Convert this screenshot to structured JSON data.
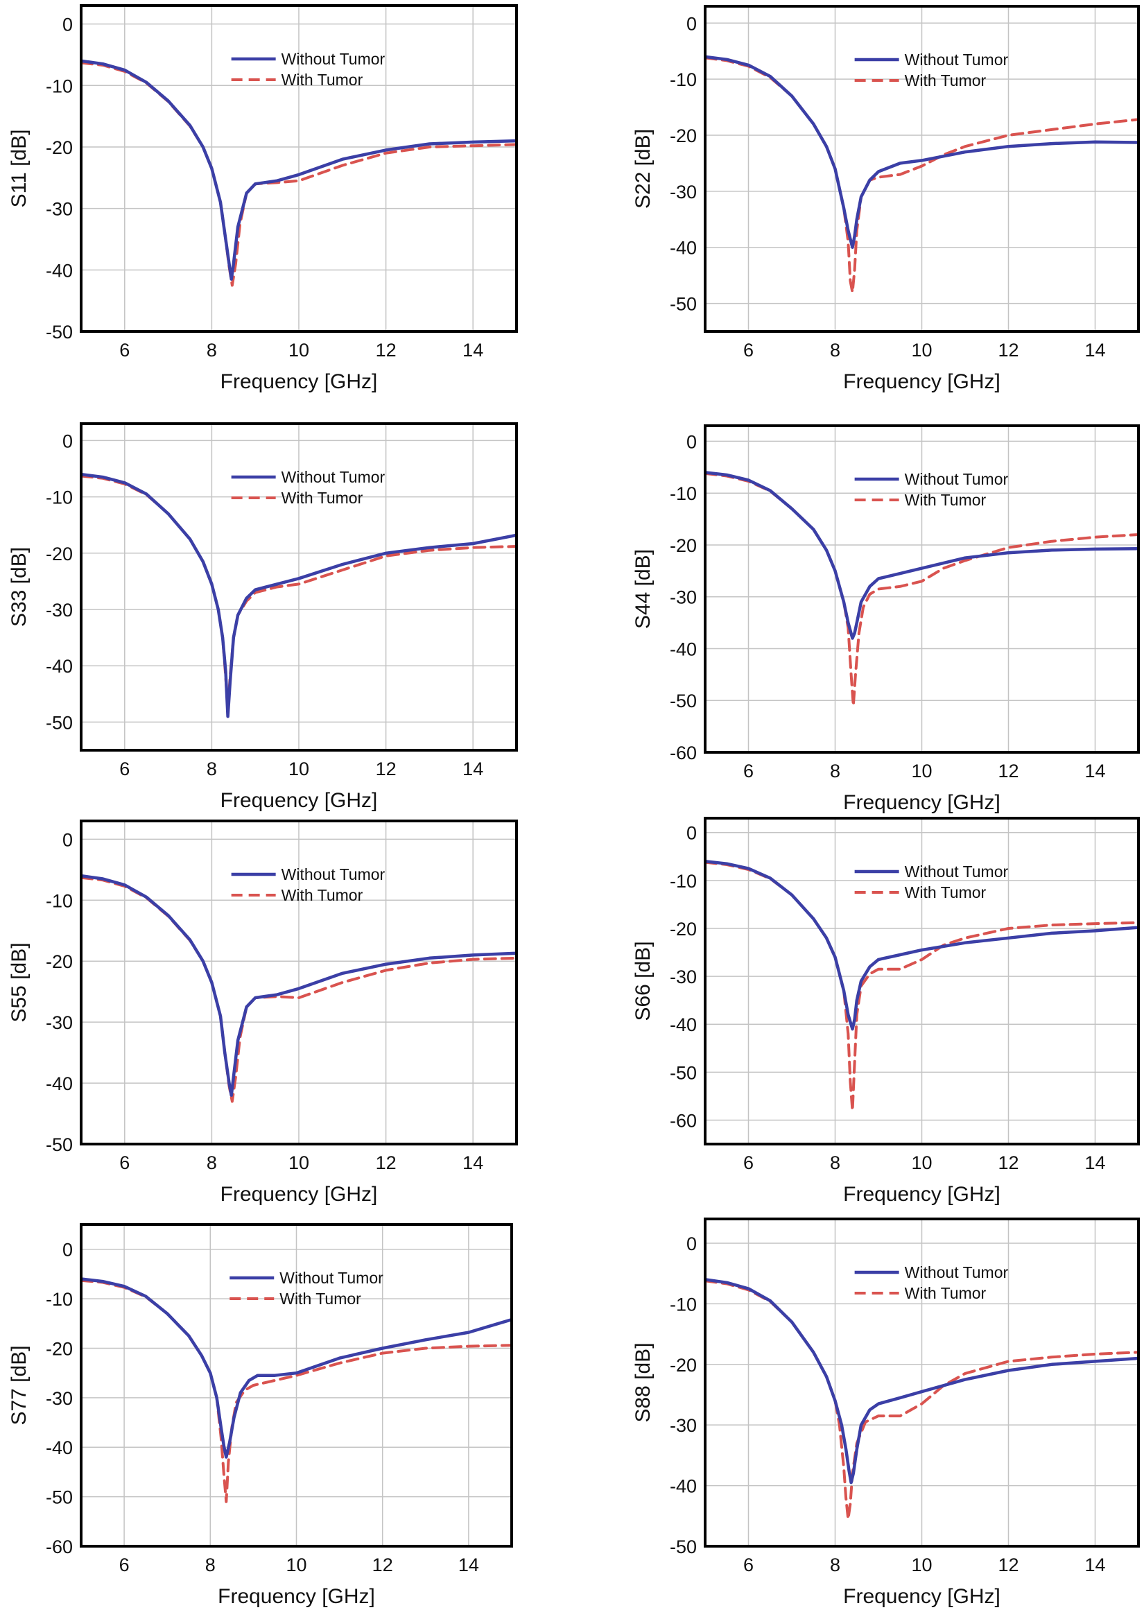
{
  "colors": {
    "without_tumor": "#3b3fa6",
    "with_tumor": "#d9534f",
    "grid": "#c4c4c4",
    "frame": "#000000"
  },
  "legend_items": [
    "Without Tumor",
    "With Tumor"
  ],
  "chart_data": [
    {
      "type": "line",
      "xlabel": "Frequency [GHz]",
      "ylabel": "S11 [dB]",
      "xlim": [
        5,
        15
      ],
      "ylim": [
        -50,
        3
      ],
      "xticks": [
        "6",
        "8",
        "10",
        "12",
        "14"
      ],
      "yticks": [
        "0",
        "-10",
        "-20",
        "-30",
        "-40",
        "-50"
      ],
      "legend": "top-right",
      "grid": true,
      "series": [
        {
          "name": "Without Tumor",
          "style": "solid",
          "x": [
            5,
            5.5,
            6,
            6.5,
            7,
            7.5,
            7.8,
            8.0,
            8.2,
            8.3,
            8.4,
            8.45,
            8.5,
            8.6,
            8.8,
            9.0,
            9.5,
            10,
            11,
            12,
            13,
            14,
            15
          ],
          "y": [
            -6,
            -6.5,
            -7.5,
            -9.5,
            -12.5,
            -16.5,
            -20,
            -23.5,
            -29,
            -34,
            -39,
            -41.5,
            -39,
            -33,
            -27.5,
            -26,
            -25.5,
            -24.5,
            -22,
            -20.5,
            -19.5,
            -19.2,
            -19
          ]
        },
        {
          "name": "With Tumor",
          "style": "dashed",
          "x": [
            5,
            5.5,
            6,
            6.5,
            7,
            7.5,
            7.8,
            8.0,
            8.2,
            8.3,
            8.4,
            8.47,
            8.55,
            8.65,
            8.8,
            9.0,
            9.5,
            10,
            11,
            12,
            13,
            14,
            15
          ],
          "y": [
            -6.3,
            -6.7,
            -7.7,
            -9.6,
            -12.6,
            -16.6,
            -20,
            -23.5,
            -29,
            -34,
            -39.5,
            -42.5,
            -39,
            -32.5,
            -27.5,
            -26,
            -25.8,
            -25.5,
            -23,
            -21,
            -20,
            -19.8,
            -19.6
          ]
        }
      ]
    },
    {
      "type": "line",
      "xlabel": "Frequency [GHz]",
      "ylabel": "S22 [dB]",
      "xlim": [
        5,
        15
      ],
      "ylim": [
        -55,
        3
      ],
      "xticks": [
        "6",
        "8",
        "10",
        "12",
        "14"
      ],
      "yticks": [
        "0",
        "-10",
        "-20",
        "-30",
        "-40",
        "-50"
      ],
      "legend": "top-right",
      "grid": true,
      "series": [
        {
          "name": "Without Tumor",
          "style": "solid",
          "x": [
            5,
            5.5,
            6,
            6.5,
            7,
            7.5,
            7.8,
            8.0,
            8.2,
            8.3,
            8.4,
            8.45,
            8.5,
            8.6,
            8.8,
            9.0,
            9.5,
            10,
            11,
            12,
            13,
            14,
            15
          ],
          "y": [
            -6,
            -6.5,
            -7.5,
            -9.5,
            -13,
            -18,
            -22,
            -26,
            -33,
            -37,
            -40,
            -38,
            -35,
            -31,
            -28,
            -26.5,
            -25,
            -24.5,
            -23,
            -22,
            -21.5,
            -21.2,
            -21.3
          ]
        },
        {
          "name": "With Tumor",
          "style": "dashed",
          "x": [
            5,
            5.5,
            6,
            6.5,
            7,
            7.5,
            7.8,
            8.0,
            8.2,
            8.3,
            8.35,
            8.4,
            8.45,
            8.5,
            8.6,
            8.8,
            9.0,
            9.5,
            10,
            10.5,
            11,
            12,
            13,
            14,
            15
          ],
          "y": [
            -6.2,
            -6.7,
            -7.7,
            -9.7,
            -13,
            -18,
            -22,
            -26,
            -33,
            -39,
            -46,
            -48,
            -44,
            -37,
            -31,
            -28,
            -27.5,
            -27,
            -25.5,
            -23.5,
            -22,
            -20,
            -19,
            -18,
            -17.2
          ]
        }
      ]
    },
    {
      "type": "line",
      "xlabel": "Frequency [GHz]",
      "ylabel": "S33 [dB]",
      "xlim": [
        5,
        15
      ],
      "ylim": [
        -55,
        3
      ],
      "xticks": [
        "6",
        "8",
        "10",
        "12",
        "14"
      ],
      "yticks": [
        "0",
        "-10",
        "-20",
        "-30",
        "-40",
        "-50"
      ],
      "legend": "top-right",
      "grid": true,
      "series": [
        {
          "name": "Without Tumor",
          "style": "solid",
          "x": [
            5,
            5.5,
            6,
            6.5,
            7,
            7.5,
            7.8,
            8.0,
            8.15,
            8.25,
            8.32,
            8.37,
            8.42,
            8.5,
            8.6,
            8.8,
            9.0,
            9.5,
            10,
            11,
            12,
            13,
            14,
            15
          ],
          "y": [
            -6,
            -6.5,
            -7.5,
            -9.5,
            -13,
            -17.5,
            -21.5,
            -25.5,
            -30,
            -35,
            -41,
            -49,
            -43,
            -35,
            -31,
            -28,
            -26.5,
            -25.5,
            -24.5,
            -22,
            -20,
            -19,
            -18.3,
            -16.8
          ]
        },
        {
          "name": "With Tumor",
          "style": "dashed",
          "x": [
            5,
            5.5,
            6,
            6.5,
            7,
            7.5,
            7.8,
            8.0,
            8.15,
            8.25,
            8.32,
            8.37,
            8.42,
            8.5,
            8.6,
            8.8,
            9.0,
            9.5,
            10,
            11,
            12,
            13,
            14,
            15
          ],
          "y": [
            -6.3,
            -6.7,
            -7.7,
            -9.6,
            -13,
            -17.5,
            -21.5,
            -25.5,
            -30,
            -35,
            -42,
            -48,
            -42,
            -35,
            -31,
            -28.5,
            -27,
            -26,
            -25.5,
            -23,
            -20.5,
            -19.5,
            -19,
            -18.8
          ]
        }
      ]
    },
    {
      "type": "line",
      "xlabel": "Frequency [GHz]",
      "ylabel": "S44 [dB]",
      "xlim": [
        5,
        15
      ],
      "ylim": [
        -60,
        3
      ],
      "xticks": [
        "6",
        "8",
        "10",
        "12",
        "14"
      ],
      "yticks": [
        "0",
        "-10",
        "-20",
        "-30",
        "-40",
        "-50",
        "-60"
      ],
      "legend": "top-right",
      "grid": true,
      "series": [
        {
          "name": "Without Tumor",
          "style": "solid",
          "x": [
            5,
            5.5,
            6,
            6.5,
            7,
            7.5,
            7.8,
            8.0,
            8.2,
            8.3,
            8.4,
            8.45,
            8.5,
            8.6,
            8.8,
            9.0,
            9.5,
            10,
            11,
            12,
            13,
            14,
            15
          ],
          "y": [
            -6,
            -6.5,
            -7.5,
            -9.5,
            -13,
            -17,
            -21,
            -25,
            -31,
            -35,
            -38,
            -37,
            -35,
            -31,
            -28,
            -26.5,
            -25.5,
            -24.5,
            -22.5,
            -21.5,
            -21,
            -20.8,
            -20.7
          ]
        },
        {
          "name": "With Tumor",
          "style": "dashed",
          "x": [
            5,
            5.5,
            6,
            6.5,
            7,
            7.5,
            7.8,
            8.0,
            8.2,
            8.3,
            8.37,
            8.42,
            8.47,
            8.55,
            8.65,
            8.8,
            9.0,
            9.5,
            10,
            10.5,
            11,
            12,
            13,
            14,
            15
          ],
          "y": [
            -6.2,
            -6.7,
            -7.7,
            -9.6,
            -13,
            -17,
            -21,
            -25,
            -31,
            -36,
            -45,
            -51,
            -45,
            -37,
            -32,
            -29.5,
            -28.5,
            -28,
            -27,
            -24.5,
            -23,
            -20.5,
            -19.3,
            -18.5,
            -18
          ]
        }
      ]
    },
    {
      "type": "line",
      "xlabel": "Frequency [GHz]",
      "ylabel": "S55 [dB]",
      "xlim": [
        5,
        15
      ],
      "ylim": [
        -50,
        3
      ],
      "xticks": [
        "6",
        "8",
        "10",
        "12",
        "14"
      ],
      "yticks": [
        "0",
        "-10",
        "-20",
        "-30",
        "-40",
        "-50"
      ],
      "legend": "top-right",
      "grid": true,
      "series": [
        {
          "name": "Without Tumor",
          "style": "solid",
          "x": [
            5,
            5.5,
            6,
            6.5,
            7,
            7.5,
            7.8,
            8.0,
            8.2,
            8.3,
            8.4,
            8.45,
            8.5,
            8.6,
            8.8,
            9.0,
            9.5,
            10,
            11,
            12,
            13,
            14,
            15
          ],
          "y": [
            -6,
            -6.5,
            -7.5,
            -9.5,
            -12.5,
            -16.5,
            -20,
            -23.5,
            -29,
            -35,
            -40,
            -42,
            -39,
            -33,
            -27.5,
            -26,
            -25.5,
            -24.5,
            -22,
            -20.5,
            -19.5,
            -19,
            -18.7
          ]
        },
        {
          "name": "With Tumor",
          "style": "dashed",
          "x": [
            5,
            5.5,
            6,
            6.5,
            7,
            7.5,
            7.8,
            8.0,
            8.2,
            8.3,
            8.4,
            8.47,
            8.55,
            8.65,
            8.8,
            9.0,
            9.5,
            10,
            11,
            12,
            13,
            14,
            15
          ],
          "y": [
            -6.3,
            -6.7,
            -7.7,
            -9.6,
            -12.6,
            -16.6,
            -20,
            -23.5,
            -29,
            -35,
            -40.5,
            -43,
            -39,
            -32.5,
            -27.5,
            -26,
            -25.8,
            -26,
            -23.5,
            -21.5,
            -20.3,
            -19.7,
            -19.5
          ]
        }
      ]
    },
    {
      "type": "line",
      "xlabel": "Frequency [GHz]",
      "ylabel": "S66 [dB]",
      "xlim": [
        5,
        15
      ],
      "ylim": [
        -65,
        3
      ],
      "xticks": [
        "6",
        "8",
        "10",
        "12",
        "14"
      ],
      "yticks": [
        "0",
        "-10",
        "-20",
        "-30",
        "-40",
        "-50",
        "-60"
      ],
      "legend": "top-right",
      "grid": true,
      "series": [
        {
          "name": "Without Tumor",
          "style": "solid",
          "x": [
            5,
            5.5,
            6,
            6.5,
            7,
            7.5,
            7.8,
            8.0,
            8.2,
            8.3,
            8.4,
            8.45,
            8.5,
            8.6,
            8.8,
            9.0,
            9.5,
            10,
            11,
            12,
            13,
            14,
            15
          ],
          "y": [
            -6,
            -6.5,
            -7.5,
            -9.5,
            -13,
            -18,
            -22,
            -26,
            -33,
            -38,
            -41,
            -39,
            -35,
            -31,
            -28,
            -26.5,
            -25.5,
            -24.5,
            -23,
            -22,
            -21,
            -20.5,
            -19.8
          ]
        },
        {
          "name": "With Tumor",
          "style": "dashed",
          "x": [
            5,
            5.5,
            6,
            6.5,
            7,
            7.5,
            7.8,
            8.0,
            8.2,
            8.3,
            8.35,
            8.4,
            8.45,
            8.5,
            8.6,
            8.8,
            9.0,
            9.5,
            10,
            10.5,
            11,
            12,
            13,
            14,
            15
          ],
          "y": [
            -6.2,
            -6.7,
            -7.7,
            -9.6,
            -13,
            -18,
            -22,
            -26,
            -33,
            -42,
            -52,
            -58,
            -48,
            -38,
            -32,
            -29.5,
            -28.5,
            -28.5,
            -26.5,
            -23.5,
            -22,
            -20,
            -19.3,
            -19,
            -18.8
          ]
        }
      ]
    },
    {
      "type": "line",
      "xlabel": "Frequency [GHz]",
      "ylabel": "S77 [dB]",
      "xlim": [
        5,
        15
      ],
      "ylim": [
        -60,
        5
      ],
      "xticks": [
        "6",
        "8",
        "10",
        "12",
        "14"
      ],
      "yticks": [
        "0",
        "-10",
        "-20",
        "-30",
        "-40",
        "-50",
        "-60"
      ],
      "legend": "top-right",
      "grid": true,
      "series": [
        {
          "name": "Without Tumor",
          "style": "solid",
          "x": [
            5,
            5.5,
            6,
            6.5,
            7,
            7.5,
            7.8,
            8.0,
            8.15,
            8.25,
            8.32,
            8.37,
            8.45,
            8.55,
            8.7,
            8.9,
            9.1,
            9.5,
            10,
            11,
            12,
            13,
            14,
            15
          ],
          "y": [
            -6,
            -6.5,
            -7.5,
            -9.5,
            -13,
            -17.5,
            -21.5,
            -25,
            -30,
            -36,
            -40,
            -42,
            -39,
            -34,
            -29,
            -26.5,
            -25.5,
            -25.5,
            -25,
            -22,
            -20,
            -18.3,
            -16.8,
            -14.2
          ]
        },
        {
          "name": "With Tumor",
          "style": "dashed",
          "x": [
            5,
            5.5,
            6,
            6.5,
            7,
            7.5,
            7.8,
            8.0,
            8.15,
            8.25,
            8.32,
            8.37,
            8.42,
            8.5,
            8.6,
            8.8,
            9.0,
            9.5,
            10,
            11,
            12,
            13,
            14,
            15
          ],
          "y": [
            -6.3,
            -6.7,
            -7.7,
            -9.6,
            -13,
            -17.5,
            -21.5,
            -25,
            -30,
            -38,
            -46,
            -51,
            -43,
            -36,
            -31,
            -28.5,
            -27.5,
            -26.5,
            -25.5,
            -23,
            -21,
            -20,
            -19.6,
            -19.4
          ]
        }
      ]
    },
    {
      "type": "line",
      "xlabel": "Frequency [GHz]",
      "ylabel": "S88 [dB]",
      "xlim": [
        5,
        15
      ],
      "ylim": [
        -50,
        4
      ],
      "xticks": [
        "6",
        "8",
        "10",
        "12",
        "14"
      ],
      "yticks": [
        "0",
        "-10",
        "-20",
        "-30",
        "-40",
        "-50"
      ],
      "legend": "top-right",
      "grid": true,
      "series": [
        {
          "name": "Without Tumor",
          "style": "solid",
          "x": [
            5,
            5.5,
            6,
            6.5,
            7,
            7.5,
            7.8,
            8.0,
            8.15,
            8.25,
            8.32,
            8.37,
            8.42,
            8.5,
            8.6,
            8.8,
            9.0,
            9.5,
            10,
            11,
            12,
            13,
            14,
            15
          ],
          "y": [
            -6,
            -6.5,
            -7.5,
            -9.5,
            -13,
            -18,
            -22,
            -26,
            -30,
            -34,
            -37.5,
            -39.5,
            -38,
            -34,
            -30,
            -27.5,
            -26.5,
            -25.5,
            -24.5,
            -22.5,
            -21,
            -20,
            -19.5,
            -19
          ]
        },
        {
          "name": "With Tumor",
          "style": "dashed",
          "x": [
            5,
            5.5,
            6,
            6.5,
            7,
            7.5,
            7.8,
            8.0,
            8.1,
            8.2,
            8.25,
            8.3,
            8.35,
            8.4,
            8.5,
            8.7,
            9.0,
            9.5,
            10,
            10.5,
            11,
            12,
            13,
            14,
            15
          ],
          "y": [
            -6.2,
            -6.7,
            -7.7,
            -9.6,
            -13,
            -18,
            -22,
            -26,
            -30,
            -37,
            -42,
            -45.5,
            -43,
            -38,
            -33,
            -29.5,
            -28.5,
            -28.5,
            -26.5,
            -23.5,
            -21.5,
            -19.5,
            -18.8,
            -18.3,
            -18
          ]
        }
      ]
    }
  ]
}
